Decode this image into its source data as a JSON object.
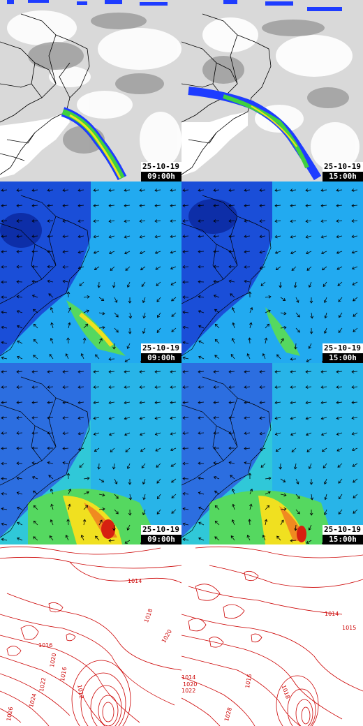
{
  "panels": [
    {
      "id": "satellite-0900",
      "product": "satellite-ir",
      "date": "25-10-19",
      "time": "09:00h"
    },
    {
      "id": "satellite-1500",
      "product": "satellite-ir",
      "date": "25-10-19",
      "time": "15:00h"
    },
    {
      "id": "wind-upper-0900",
      "product": "wind-vectors",
      "date": "25-10-19",
      "time": "09:00h"
    },
    {
      "id": "wind-upper-1500",
      "product": "wind-vectors",
      "date": "25-10-19",
      "time": "15:00h"
    },
    {
      "id": "wind-lower-0900",
      "product": "wind-vectors",
      "date": "25-10-19",
      "time": "09:00h"
    },
    {
      "id": "wind-lower-1500",
      "product": "wind-vectors",
      "date": "25-10-19",
      "time": "15:00h"
    },
    {
      "id": "pressure-left",
      "product": "isobars"
    },
    {
      "id": "pressure-right",
      "product": "isobars"
    }
  ],
  "isobar_labels": {
    "left": [
      "1014",
      "1016",
      "1018",
      "1020",
      "1016",
      "1022",
      "1024",
      "1012",
      "1026",
      "1020"
    ],
    "right": [
      "1014",
      "1016",
      "1015",
      "1014",
      "1022",
      "1020",
      "1028",
      "1018"
    ]
  },
  "colors": {
    "cloud_grey": "#a8a8a8",
    "convective_blue": "#1e3cff",
    "convective_green": "#3fd13f",
    "convective_yellow": "#f0e020",
    "wind_background": "#22aaf0",
    "wind_land": "#1a4ed8",
    "wind_core": "#d62010",
    "isobar_red": "#cc0000",
    "border_black": "#000000"
  }
}
